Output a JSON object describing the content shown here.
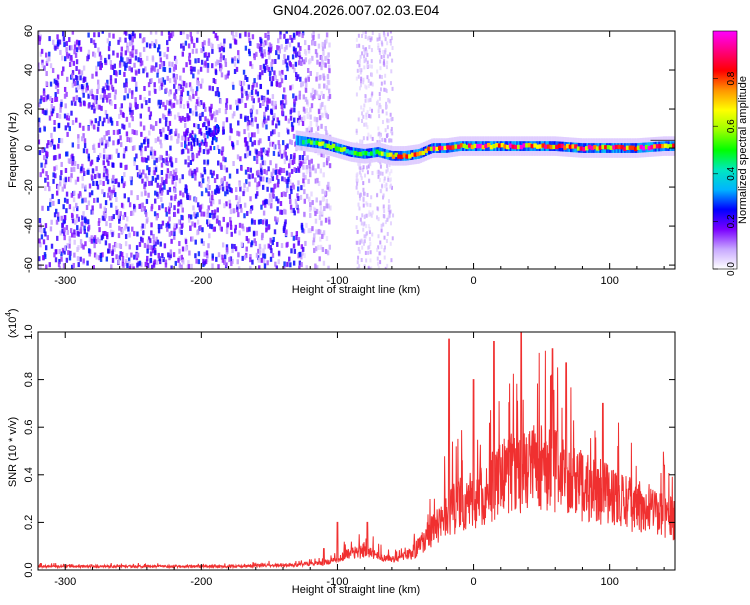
{
  "title": "GN04.2026.007.02.03.E04",
  "chart_data": [
    {
      "type": "heatmap",
      "xlabel": "Height of straight line (km)",
      "ylabel": "Frequency (Hz)",
      "xlim": [
        -320,
        148
      ],
      "ylim": [
        -62,
        60
      ],
      "xticks": [
        -300,
        -200,
        -100,
        0,
        100
      ],
      "yticks": [
        -60,
        -40,
        -20,
        0,
        20,
        40,
        60
      ],
      "grid": false,
      "description_of_field": "broadband noise for heights below about -110 km and a narrow band near 0 Hz above about -110 km",
      "ridge": {
        "x": [
          -130,
          -110,
          -100,
          -90,
          -80,
          -70,
          -60,
          -50,
          -40,
          -30,
          -20,
          -10,
          0,
          20,
          40,
          60,
          80,
          100,
          120,
          140,
          148
        ],
        "y": [
          4,
          2,
          0,
          -2,
          -3,
          -2,
          -4,
          -4,
          -3,
          0,
          0,
          1,
          1,
          1,
          1,
          1,
          0,
          0,
          0,
          1,
          1
        ]
      },
      "colorbar": {
        "label": "Normalized spectral amplitude",
        "ticks": [
          0.0,
          0.2,
          0.4,
          0.6,
          0.8
        ],
        "range": [
          0,
          1
        ],
        "colors": [
          "#ffffff",
          "#c8a8ff",
          "#7a00ff",
          "#0000ff",
          "#00b4ff",
          "#00e8c0",
          "#00ff00",
          "#9cff00",
          "#ffff00",
          "#ff9600",
          "#ff0000",
          "#ff0080",
          "#ff00ff"
        ]
      }
    },
    {
      "type": "line",
      "xlabel": "Height of straight line (km)",
      "ylabel": "SNR (10 * v/v)",
      "y_multiplier": "(x10",
      "y_multiplier_exp": "4",
      "y_multiplier_close": ")",
      "xlim": [
        -320,
        148
      ],
      "ylim": [
        0,
        1.0
      ],
      "xticks": [
        -300,
        -200,
        -100,
        0,
        100
      ],
      "yticks": [
        0.0,
        0.2,
        0.4,
        0.6,
        0.8,
        1.0
      ],
      "ytick_labels": [
        "0.0",
        "0.2",
        "0.4",
        "0.6",
        "0.8",
        "1.0"
      ],
      "grid": false,
      "color": "#f03030",
      "envelope": {
        "x": [
          -320,
          -250,
          -180,
          -130,
          -110,
          -100,
          -90,
          -80,
          -70,
          -60,
          -50,
          -40,
          -30,
          -20,
          -10,
          0,
          10,
          20,
          30,
          40,
          50,
          60,
          70,
          80,
          90,
          100,
          110,
          120,
          130,
          140,
          148
        ],
        "y": [
          0.02,
          0.02,
          0.02,
          0.03,
          0.04,
          0.06,
          0.1,
          0.12,
          0.08,
          0.06,
          0.08,
          0.14,
          0.25,
          0.33,
          0.4,
          0.42,
          0.48,
          0.55,
          0.58,
          0.6,
          0.62,
          0.6,
          0.55,
          0.5,
          0.48,
          0.45,
          0.4,
          0.38,
          0.36,
          0.33,
          0.3
        ]
      },
      "peaks": [
        {
          "x": -110,
          "y": 0.09
        },
        {
          "x": -100,
          "y": 0.2
        },
        {
          "x": -78,
          "y": 0.2
        },
        {
          "x": -18,
          "y": 0.97
        },
        {
          "x": 0,
          "y": 0.8
        },
        {
          "x": 15,
          "y": 0.96
        },
        {
          "x": 35,
          "y": 1.0
        },
        {
          "x": 58,
          "y": 0.93
        },
        {
          "x": 68,
          "y": 0.87
        },
        {
          "x": 95,
          "y": 0.7
        },
        {
          "x": 140,
          "y": 0.44
        }
      ]
    }
  ]
}
